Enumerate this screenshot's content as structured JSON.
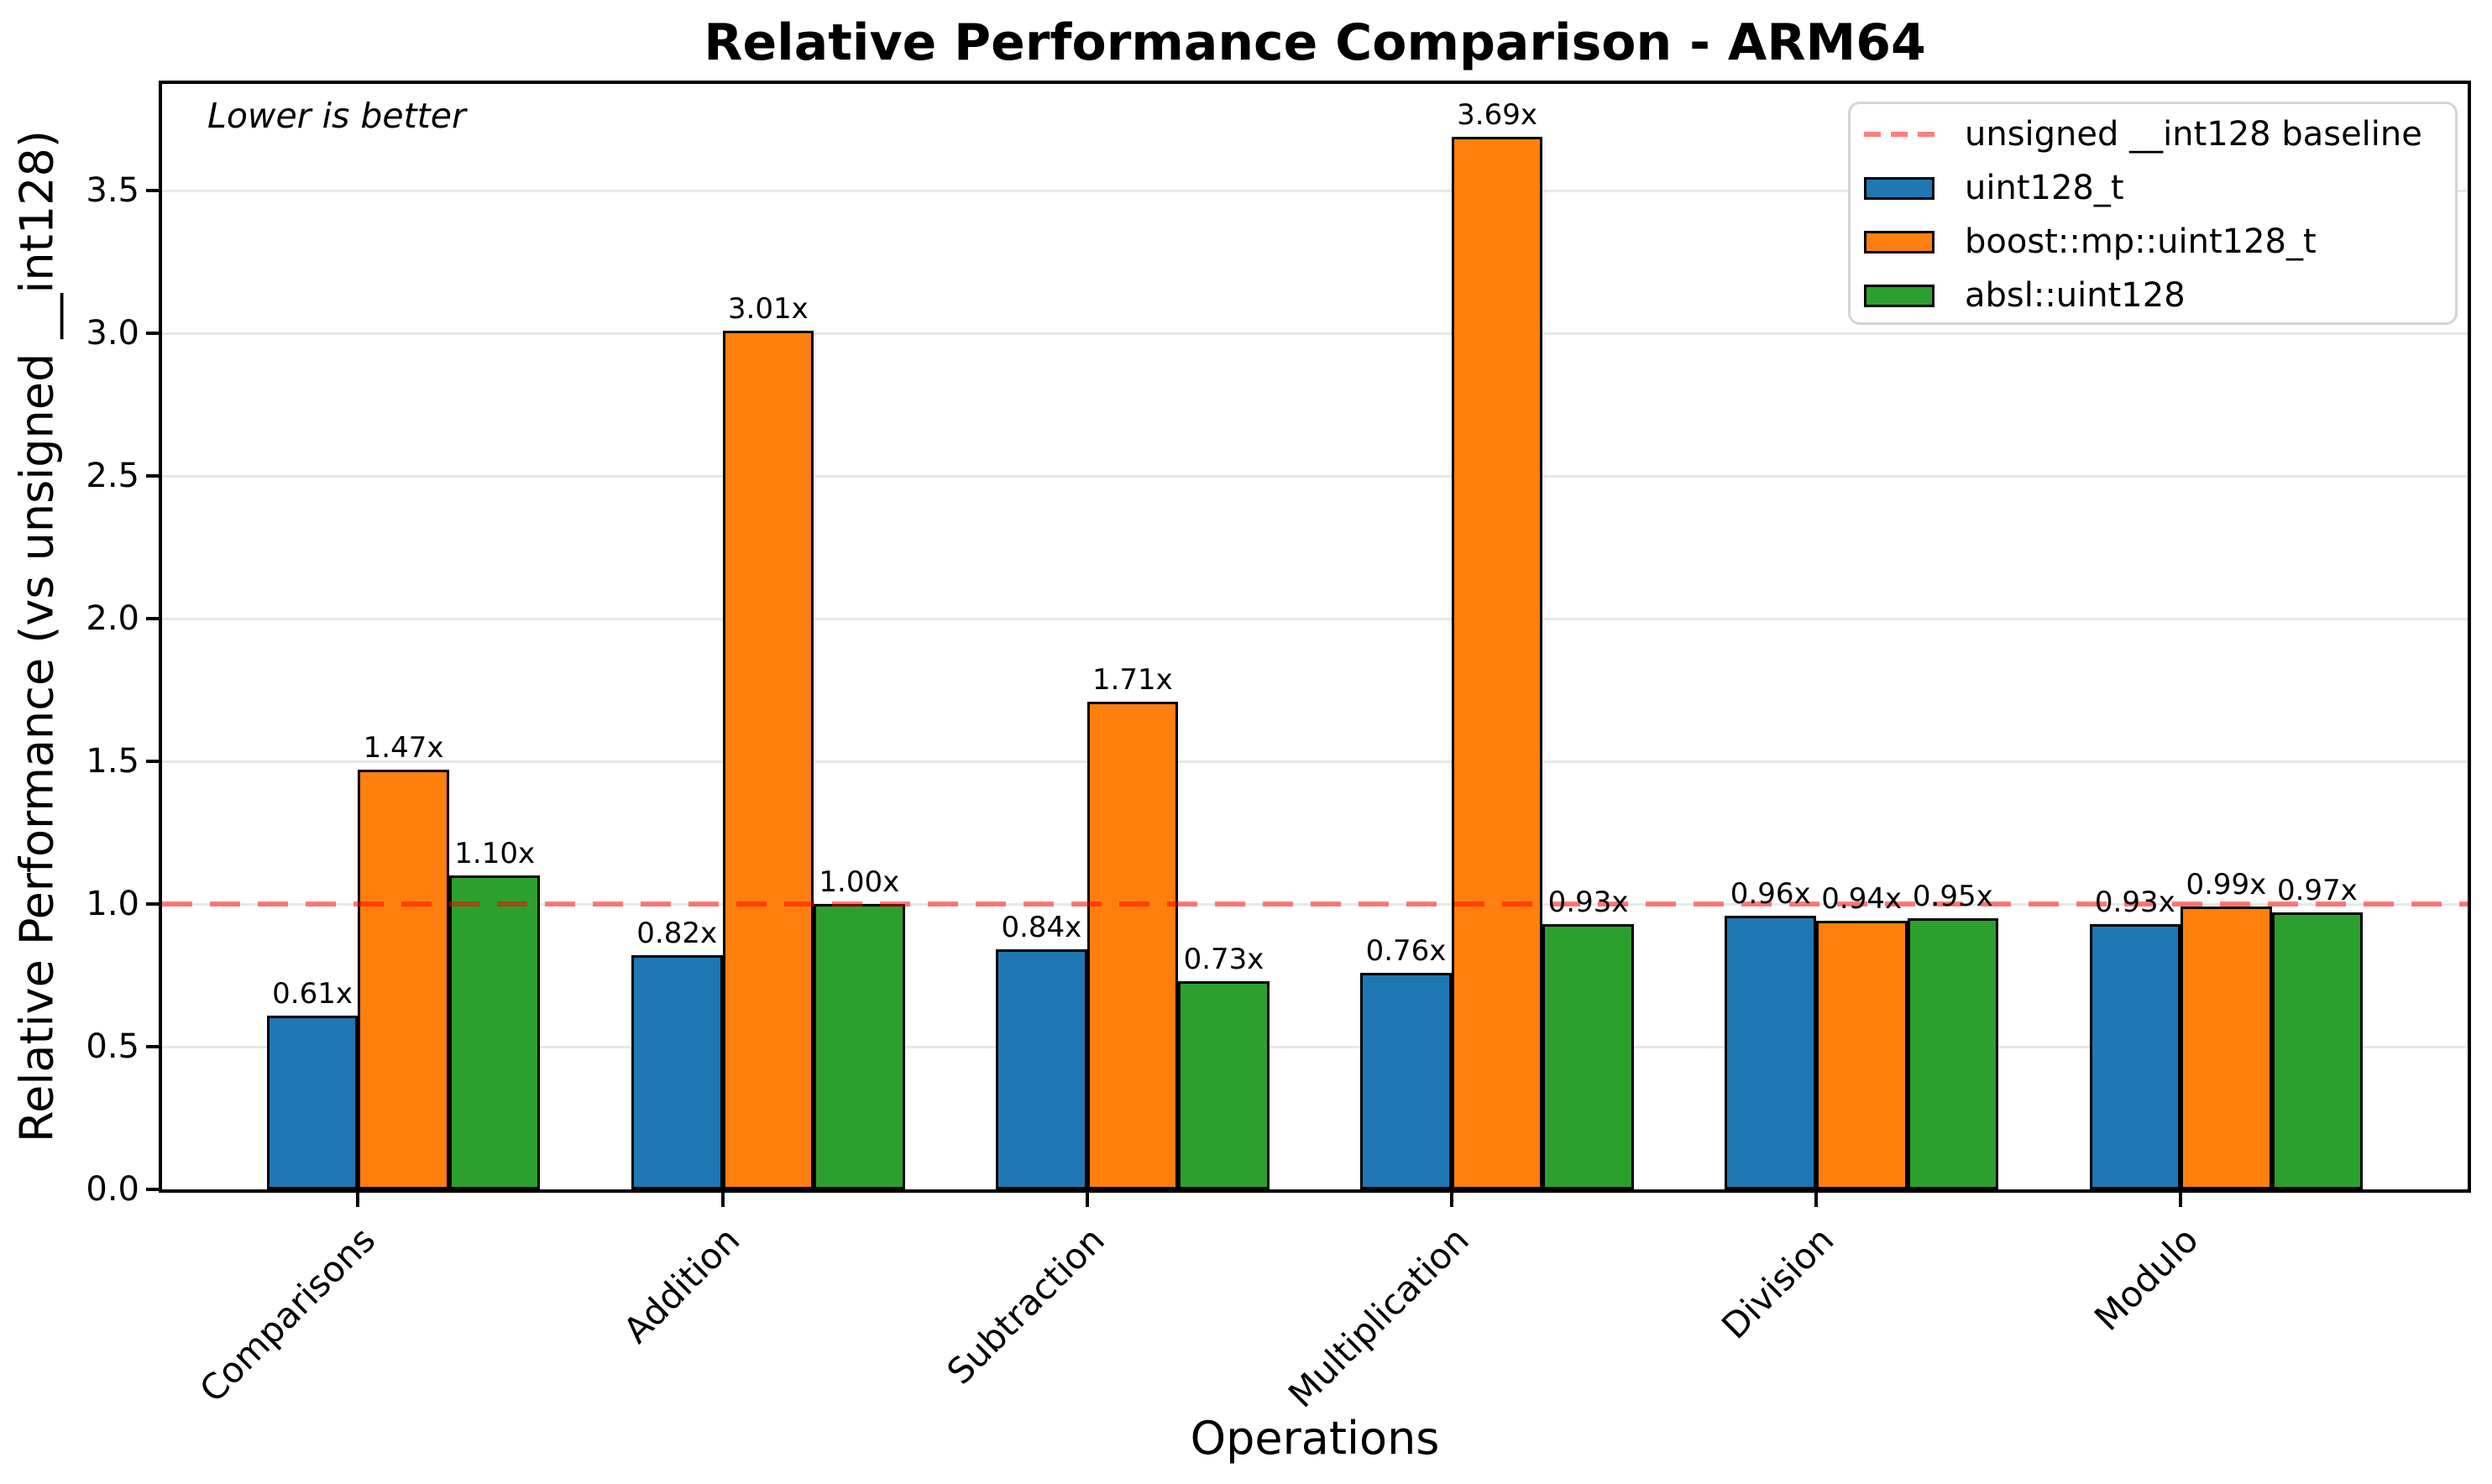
{
  "chart_data": {
    "type": "bar",
    "title": "Relative Performance Comparison - ARM64",
    "xlabel": "Operations",
    "ylabel": "Relative Performance (vs unsigned __int128)",
    "annotation": "Lower is better",
    "categories": [
      "Comparisons",
      "Addition",
      "Subtraction",
      "Multiplication",
      "Division",
      "Modulo"
    ],
    "series": [
      {
        "name": "uint128_t",
        "color": "#1f77b4",
        "values": [
          0.61,
          0.82,
          0.84,
          0.76,
          0.96,
          0.93
        ],
        "labels": [
          "0.61x",
          "0.82x",
          "0.84x",
          "0.76x",
          "0.96x",
          "0.93x"
        ]
      },
      {
        "name": "boost::mp::uint128_t",
        "color": "#ff7f0e",
        "values": [
          1.47,
          3.01,
          1.71,
          3.69,
          0.94,
          0.99
        ],
        "labels": [
          "1.47x",
          "3.01x",
          "1.71x",
          "3.69x",
          "0.94x",
          "0.99x"
        ]
      },
      {
        "name": "absl::uint128",
        "color": "#2ca02c",
        "values": [
          1.1,
          1.0,
          0.73,
          0.93,
          0.95,
          0.97
        ],
        "labels": [
          "1.10x",
          "1.00x",
          "0.73x",
          "0.93x",
          "0.95x",
          "0.97x"
        ]
      }
    ],
    "baseline": {
      "value": 1.0,
      "label": "unsigned __int128 baseline",
      "color": "rgba(255,0,0,0.5)",
      "style": "dashed"
    },
    "y_ticks": [
      "0.0",
      "0.5",
      "1.0",
      "1.5",
      "2.0",
      "2.5",
      "3.0",
      "3.5"
    ],
    "ylim": [
      0,
      3.874
    ],
    "xlim": [
      -0.5375,
      5.7875
    ],
    "bar_width_units": 0.25,
    "grid": true,
    "grid_color": "#e8e8e8",
    "bar_edge_color": "#000000",
    "legend_position": "upper right",
    "lower_is_better": true
  }
}
